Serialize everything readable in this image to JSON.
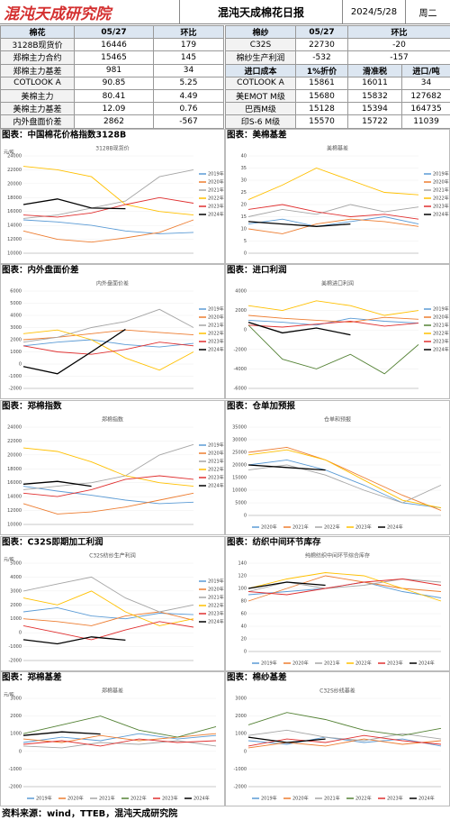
{
  "header": {
    "logo": "混沌天成研究院",
    "title": "混沌天成棉花日报",
    "date": "2024/5/28",
    "weekday": "周二"
  },
  "cotton_table": {
    "headers": [
      "棉花",
      "05/27",
      "环比"
    ],
    "rows": [
      [
        "3128B现货价",
        "16446",
        "179"
      ],
      [
        "郑棉主力合约",
        "15465",
        "145"
      ],
      [
        "郑棉主力基差",
        "981",
        "34"
      ],
      [
        "COTLOOK A",
        "90.85",
        "5.25"
      ],
      [
        "美棉主力",
        "80.41",
        "4.49"
      ],
      [
        "美棉主力基差",
        "12.09",
        "0.76"
      ],
      [
        "内外盘面价差",
        "2862",
        "-567"
      ]
    ]
  },
  "yarn_table": {
    "headers": [
      "棉纱",
      "05/27",
      "环比"
    ],
    "rows": [
      [
        "C32S",
        "22730",
        "-20"
      ],
      [
        "棉纱生产利润",
        "-532",
        "-157"
      ]
    ]
  },
  "import_table": {
    "headers": [
      "进口成本",
      "1%折价",
      "滑准税",
      "进口/吨"
    ],
    "rows": [
      [
        "COTLOOK A",
        "15861",
        "16011",
        "34"
      ],
      [
        "美EMOT M级",
        "15680",
        "15832",
        "127682"
      ],
      [
        "巴西M级",
        "15128",
        "15394",
        "164735"
      ],
      [
        "印S-6 M级",
        "15570",
        "15722",
        "11039"
      ]
    ]
  },
  "footer": "资料来源：wind，TTEB，混沌天成研究院",
  "chart_data": [
    {
      "type": "line",
      "title": "图表：中国棉花价格指数3128B",
      "subtitle": "3128B现货价",
      "ylabel": "元/吨",
      "ylim": [
        10000,
        24000
      ],
      "yticks": [
        10000,
        12000,
        14000,
        16000,
        18000,
        20000,
        22000,
        24000
      ],
      "legend": "right",
      "series": [
        {
          "name": "2019年",
          "color": "#5b9bd5",
          "values": [
            14800,
            14500,
            14000,
            13200,
            12800,
            13000
          ]
        },
        {
          "name": "2020年",
          "color": "#ed7d31",
          "values": [
            13200,
            12000,
            11600,
            12200,
            13000,
            14800
          ]
        },
        {
          "name": "2021年",
          "color": "#a5a5a5",
          "values": [
            15000,
            15500,
            16500,
            17500,
            21000,
            22000
          ]
        },
        {
          "name": "2022年",
          "color": "#ffc000",
          "values": [
            22500,
            22000,
            21000,
            17000,
            16000,
            15500
          ]
        },
        {
          "name": "2023年",
          "color": "#e03030",
          "values": [
            15500,
            15200,
            15800,
            17000,
            18000,
            17200
          ]
        },
        {
          "name": "2024年",
          "color": "#000000",
          "values": [
            17000,
            17800,
            16500,
            16400,
            null,
            null
          ]
        }
      ]
    },
    {
      "type": "line",
      "title": "图表：美棉基差",
      "subtitle": "美棉基差",
      "ylim": [
        0,
        40
      ],
      "yticks": [
        0,
        5,
        10,
        15,
        20,
        25,
        30,
        35,
        40
      ],
      "legend": "right",
      "series": [
        {
          "name": "2019年",
          "color": "#5b9bd5",
          "values": [
            12,
            14,
            11,
            13,
            15,
            12
          ]
        },
        {
          "name": "2020年",
          "color": "#ed7d31",
          "values": [
            10,
            8,
            12,
            14,
            13,
            11
          ]
        },
        {
          "name": "2021年",
          "color": "#a5a5a5",
          "values": [
            15,
            18,
            16,
            20,
            17,
            19
          ]
        },
        {
          "name": "2022年",
          "color": "#ffc000",
          "values": [
            22,
            28,
            35,
            30,
            25,
            24
          ]
        },
        {
          "name": "2023年",
          "color": "#e03030",
          "values": [
            18,
            20,
            17,
            15,
            16,
            14
          ]
        },
        {
          "name": "2024年",
          "color": "#000000",
          "values": [
            13,
            12,
            11,
            12,
            null,
            null
          ]
        }
      ]
    },
    {
      "type": "line",
      "title": "图表：内外盘面价差",
      "subtitle": "内外盘面价差",
      "ylim": [
        -2000,
        6000
      ],
      "yticks": [
        -2000,
        -1000,
        0,
        1000,
        2000,
        3000,
        4000,
        5000,
        6000
      ],
      "legend": "right",
      "series": [
        {
          "name": "2019年",
          "color": "#5b9bd5",
          "values": [
            1500,
            1800,
            2000,
            1600,
            1400,
            1700
          ]
        },
        {
          "name": "2020年",
          "color": "#ed7d31",
          "values": [
            2000,
            2200,
            2500,
            2800,
            2600,
            2400
          ]
        },
        {
          "name": "2021年",
          "color": "#a5a5a5",
          "values": [
            1800,
            2200,
            3000,
            3500,
            4500,
            3000
          ]
        },
        {
          "name": "2022年",
          "color": "#ffc000",
          "values": [
            2500,
            2800,
            2000,
            500,
            -500,
            1000
          ]
        },
        {
          "name": "2023年",
          "color": "#e03030",
          "values": [
            1500,
            1000,
            800,
            1200,
            1800,
            1500
          ]
        },
        {
          "name": "2024年",
          "color": "#000000",
          "values": [
            -200,
            -800,
            1000,
            2862,
            null,
            null
          ]
        }
      ]
    },
    {
      "type": "line",
      "title": "图表：进口利润",
      "subtitle": "美棉进口利润",
      "ylim": [
        -6000,
        4000
      ],
      "yticks": [
        -6000,
        -4000,
        -2000,
        0,
        2000,
        4000
      ],
      "legend": "right",
      "series": [
        {
          "name": "2019年",
          "color": "#5b9bd5",
          "values": [
            1000,
            800,
            500,
            1200,
            900,
            700
          ]
        },
        {
          "name": "2020年",
          "color": "#ed7d31",
          "values": [
            1500,
            1200,
            1000,
            800,
            1300,
            1100
          ]
        },
        {
          "name": "2021年",
          "color": "#548235",
          "values": [
            500,
            -3000,
            -4000,
            -2500,
            -4500,
            -1500
          ]
        },
        {
          "name": "2022年",
          "color": "#ffc000",
          "values": [
            2500,
            2000,
            3000,
            2500,
            1500,
            2000
          ]
        },
        {
          "name": "2023年",
          "color": "#e03030",
          "values": [
            500,
            300,
            600,
            900,
            400,
            700
          ]
        },
        {
          "name": "2024年",
          "color": "#000000",
          "values": [
            800,
            -300,
            200,
            -500,
            null,
            null
          ]
        }
      ]
    },
    {
      "type": "line",
      "title": "图表：郑棉指数",
      "subtitle": "郑棉指数",
      "ylim": [
        10000,
        24000
      ],
      "yticks": [
        10000,
        12000,
        14000,
        16000,
        18000,
        20000,
        22000,
        24000
      ],
      "legend": "right",
      "series": [
        {
          "name": "2019年",
          "color": "#5b9bd5",
          "values": [
            15500,
            14800,
            14200,
            13500,
            13000,
            13200
          ]
        },
        {
          "name": "2020年",
          "color": "#ed7d31",
          "values": [
            13000,
            11500,
            11800,
            12500,
            13500,
            14500
          ]
        },
        {
          "name": "2021年",
          "color": "#a5a5a5",
          "values": [
            15000,
            15500,
            16000,
            17000,
            20000,
            21500
          ]
        },
        {
          "name": "2022年",
          "color": "#ffc000",
          "values": [
            21000,
            20500,
            19000,
            17000,
            16000,
            15500
          ]
        },
        {
          "name": "2023年",
          "color": "#e03030",
          "values": [
            14500,
            14000,
            15000,
            16500,
            17000,
            16500
          ]
        },
        {
          "name": "2024年",
          "color": "#000000",
          "values": [
            15800,
            16200,
            15500,
            null,
            null,
            null
          ]
        }
      ]
    },
    {
      "type": "line",
      "title": "图表：仓单加预报",
      "subtitle": "仓单和预报",
      "ylim": [
        0,
        35000
      ],
      "yticks": [
        0,
        5000,
        10000,
        15000,
        20000,
        25000,
        30000,
        35000
      ],
      "legend": "bottom",
      "series": [
        {
          "name": "2020年",
          "color": "#5b9bd5",
          "values": [
            20000,
            22000,
            18000,
            12000,
            5000,
            3000
          ]
        },
        {
          "name": "2021年",
          "color": "#ed7d31",
          "values": [
            25000,
            27000,
            22000,
            15000,
            8000,
            2000
          ]
        },
        {
          "name": "2022年",
          "color": "#a5a5a5",
          "values": [
            18000,
            20000,
            16000,
            10000,
            5000,
            12000
          ]
        },
        {
          "name": "2023年",
          "color": "#ffc000",
          "values": [
            24000,
            26000,
            22000,
            14000,
            6000,
            3000
          ]
        },
        {
          "name": "2024年",
          "color": "#000000",
          "values": [
            20000,
            19000,
            18000,
            null,
            null,
            null
          ]
        }
      ]
    },
    {
      "type": "line",
      "title": "图表：C32S即期加工利润",
      "subtitle": "C32S纺纱生产利润",
      "ylabel": "元/吨",
      "ylim": [
        -2000,
        5000
      ],
      "yticks": [
        -2000,
        -1000,
        0,
        1000,
        2000,
        3000,
        4000,
        5000
      ],
      "legend": "right",
      "series": [
        {
          "name": "2019年",
          "color": "#5b9bd5",
          "values": [
            1500,
            1800,
            1200,
            1000,
            1400,
            1300
          ]
        },
        {
          "name": "2020年",
          "color": "#ed7d31",
          "values": [
            1000,
            800,
            500,
            1200,
            1500,
            900
          ]
        },
        {
          "name": "2021年",
          "color": "#a5a5a5",
          "values": [
            3000,
            3500,
            4000,
            2500,
            1500,
            2000
          ]
        },
        {
          "name": "2022年",
          "color": "#ffc000",
          "values": [
            2500,
            2000,
            3000,
            1500,
            500,
            1000
          ]
        },
        {
          "name": "2023年",
          "color": "#e03030",
          "values": [
            500,
            0,
            -500,
            200,
            800,
            400
          ]
        },
        {
          "name": "2024年",
          "color": "#000000",
          "values": [
            -500,
            -800,
            -300,
            -532,
            null,
            null
          ]
        }
      ]
    },
    {
      "type": "line",
      "title": "图表：纺织中间环节库存",
      "subtitle": "纯棉纺织中间环节综合库存",
      "ylim": [
        0,
        140
      ],
      "yticks": [
        0,
        20,
        40,
        60,
        80,
        100,
        120,
        140
      ],
      "legend": "bottom",
      "series": [
        {
          "name": "2019年",
          "color": "#5b9bd5",
          "values": [
            90,
            95,
            100,
            110,
            95,
            85
          ]
        },
        {
          "name": "2020年",
          "color": "#ed7d31",
          "values": [
            80,
            100,
            120,
            110,
            100,
            95
          ]
        },
        {
          "name": "2021年",
          "color": "#a5a5a5",
          "values": [
            95,
            110,
            100,
            105,
            115,
            110
          ]
        },
        {
          "name": "2022年",
          "color": "#ffc000",
          "values": [
            100,
            115,
            125,
            120,
            100,
            80
          ]
        },
        {
          "name": "2023年",
          "color": "#e03030",
          "values": [
            95,
            90,
            100,
            110,
            115,
            105
          ]
        },
        {
          "name": "2024年",
          "color": "#000000",
          "values": [
            100,
            110,
            105,
            null,
            null,
            null
          ]
        }
      ]
    },
    {
      "type": "line",
      "title": "图表：郑棉基差",
      "subtitle": "郑棉基差",
      "ylabel": "元/吨",
      "ylim": [
        -2000,
        3000
      ],
      "yticks": [
        -2000,
        -1000,
        0,
        1000,
        2000,
        3000
      ],
      "legend": "bottom",
      "series": [
        {
          "name": "2019年",
          "color": "#5b9bd5",
          "values": [
            500,
            800,
            600,
            1000,
            700,
            900
          ]
        },
        {
          "name": "2020年",
          "color": "#ed7d31",
          "values": [
            700,
            500,
            900,
            600,
            800,
            1000
          ]
        },
        {
          "name": "2021年",
          "color": "#a5a5a5",
          "values": [
            300,
            200,
            500,
            400,
            600,
            300
          ]
        },
        {
          "name": "2022年",
          "color": "#548235",
          "values": [
            1000,
            1500,
            2000,
            1200,
            800,
            1400
          ]
        },
        {
          "name": "2023年",
          "color": "#e03030",
          "values": [
            400,
            600,
            300,
            700,
            500,
            600
          ]
        },
        {
          "name": "2024年",
          "color": "#000000",
          "values": [
            900,
            1100,
            981,
            null,
            null,
            null
          ]
        }
      ]
    },
    {
      "type": "line",
      "title": "图表：棉纱基差",
      "subtitle": "C32S纱线基差",
      "ylim": [
        -2000,
        3000
      ],
      "yticks": [
        -2000,
        -1000,
        0,
        1000,
        2000,
        3000
      ],
      "legend": "bottom",
      "series": [
        {
          "name": "2019年",
          "color": "#5b9bd5",
          "values": [
            600,
            400,
            800,
            500,
            700,
            300
          ]
        },
        {
          "name": "2020年",
          "color": "#ed7d31",
          "values": [
            200,
            500,
            300,
            700,
            400,
            600
          ]
        },
        {
          "name": "2021年",
          "color": "#a5a5a5",
          "values": [
            900,
            1200,
            800,
            600,
            1000,
            700
          ]
        },
        {
          "name": "2022年",
          "color": "#548235",
          "values": [
            1500,
            2200,
            1800,
            1200,
            900,
            1300
          ]
        },
        {
          "name": "2023年",
          "color": "#e03030",
          "values": [
            300,
            700,
            500,
            900,
            600,
            400
          ]
        },
        {
          "name": "2024年",
          "color": "#000000",
          "values": [
            800,
            500,
            700,
            null,
            null,
            null
          ]
        }
      ]
    }
  ]
}
